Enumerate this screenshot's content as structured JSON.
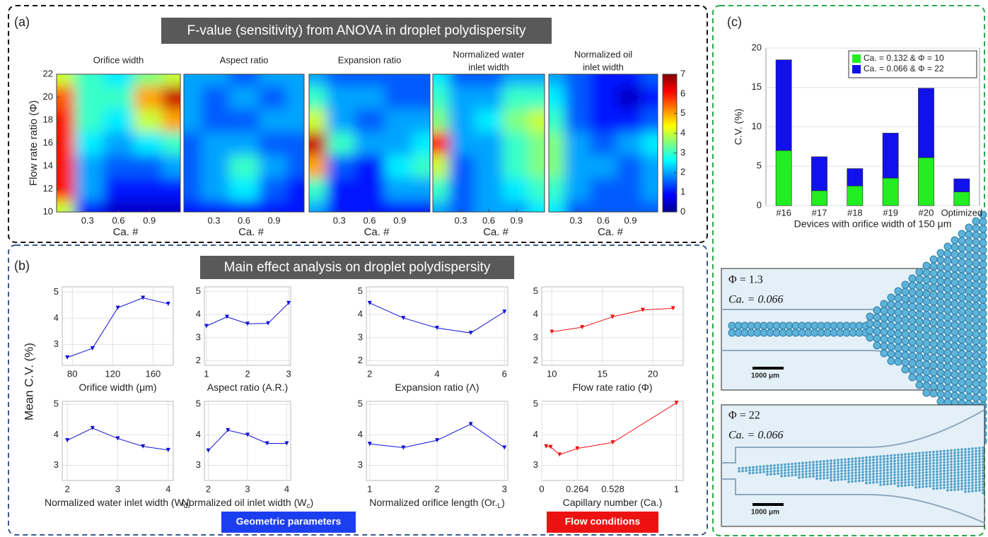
{
  "labels": {
    "panel_a": "(a)",
    "panel_b": "(b)",
    "panel_c": "(c)",
    "header_a": "F-value (sensitivity) from ANOVA in droplet polydispersity",
    "header_b": "Main effect analysis on droplet polydispersity",
    "shared_ylabel": "Mean C.V. (%)",
    "button_geometric": "Geometric parameters",
    "button_flow": "Flow conditions"
  },
  "images": [
    {
      "phi": "Φ = 1.3",
      "ca": "Ca. = 0.066",
      "scale": "1000 μm"
    },
    {
      "phi": "Φ = 22",
      "ca": "Ca. = 0.066",
      "scale": "1000 μm"
    }
  ],
  "chart_data": [
    {
      "type": "heatmap",
      "title": [
        "Orifice width"
      ],
      "xlabel": "Ca. #",
      "ylabel": "Flow rate ratio (Φ)",
      "colormap": "jet",
      "xlim": [
        0,
        1.2
      ],
      "xticks": [
        0.3,
        0.6,
        0.9
      ],
      "ylim": [
        10,
        22
      ],
      "yticks": [
        10,
        12,
        14,
        16,
        18,
        20,
        22
      ],
      "clim": [
        0,
        7
      ],
      "x": [
        0.05,
        0.3,
        0.6,
        0.9,
        1.15
      ],
      "y": [
        10,
        12,
        14,
        16,
        18,
        20,
        22
      ],
      "z": [
        [
          4,
          1,
          0.5,
          0.5,
          0.5
        ],
        [
          6,
          2,
          1,
          1,
          1
        ],
        [
          6,
          2,
          1.5,
          1.5,
          2
        ],
        [
          6,
          2.5,
          2,
          2.5,
          3
        ],
        [
          6,
          3,
          2.5,
          4,
          5
        ],
        [
          5.5,
          3,
          3,
          5,
          6.5
        ],
        [
          4,
          3,
          2.5,
          3.5,
          4
        ]
      ]
    },
    {
      "type": "heatmap",
      "title": [
        "Aspect ratio"
      ],
      "xlabel": "Ca. #",
      "colormap": "jet",
      "xlim": [
        0,
        1.2
      ],
      "xticks": [
        0.3,
        0.6,
        0.9
      ],
      "ylim": [
        10,
        22
      ],
      "clim": [
        0,
        7
      ],
      "x": [
        0.05,
        0.3,
        0.6,
        0.9,
        1.15
      ],
      "y": [
        10,
        12,
        14,
        16,
        18,
        20,
        22
      ],
      "z": [
        [
          1,
          1,
          1,
          1,
          1
        ],
        [
          1.5,
          2,
          2.5,
          1.5,
          1
        ],
        [
          1.5,
          2,
          3,
          2,
          1.5
        ],
        [
          1.5,
          2,
          2,
          1.5,
          1.5
        ],
        [
          2,
          1.5,
          1.5,
          2,
          2
        ],
        [
          2,
          1.5,
          2,
          1.5,
          2
        ],
        [
          2,
          2,
          1.5,
          2,
          2
        ]
      ]
    },
    {
      "type": "heatmap",
      "title": [
        "Expansion ratio"
      ],
      "xlabel": "Ca. #",
      "colormap": "jet",
      "xlim": [
        0,
        1.2
      ],
      "xticks": [
        0.3,
        0.6,
        0.9
      ],
      "ylim": [
        10,
        22
      ],
      "clim": [
        0,
        7
      ],
      "x": [
        0.05,
        0.3,
        0.6,
        0.9,
        1.15
      ],
      "y": [
        10,
        12,
        14,
        16,
        18,
        20,
        22
      ],
      "z": [
        [
          2,
          1,
          1,
          1,
          1
        ],
        [
          3,
          1,
          1,
          2,
          2
        ],
        [
          5,
          1.5,
          1,
          2.5,
          3
        ],
        [
          6.5,
          3,
          2,
          2,
          2.5
        ],
        [
          4,
          2,
          1.5,
          2,
          2
        ],
        [
          3,
          2,
          2,
          1.5,
          1.5
        ],
        [
          2,
          1.5,
          1.5,
          1.5,
          1.5
        ]
      ]
    },
    {
      "type": "heatmap",
      "title": [
        "Normalized water",
        "inlet width"
      ],
      "xlabel": "Ca. #",
      "colormap": "jet",
      "xlim": [
        0,
        1.2
      ],
      "xticks": [
        0.3,
        0.6,
        0.9
      ],
      "ylim": [
        10,
        22
      ],
      "clim": [
        0,
        7
      ],
      "x": [
        0.05,
        0.3,
        0.6,
        0.9,
        1.15
      ],
      "y": [
        10,
        12,
        14,
        16,
        18,
        20,
        22
      ],
      "z": [
        [
          2,
          1.5,
          2,
          2,
          2.5
        ],
        [
          3,
          1.5,
          2,
          2.5,
          3
        ],
        [
          4,
          1.5,
          2,
          3,
          3.5
        ],
        [
          6,
          2,
          2,
          3,
          3.5
        ],
        [
          3.5,
          2,
          2.5,
          3.5,
          4
        ],
        [
          3,
          2,
          2,
          3,
          3
        ],
        [
          2.5,
          1.5,
          1.5,
          2,
          2
        ]
      ]
    },
    {
      "type": "heatmap",
      "title": [
        "Normalized oil",
        "inlet width"
      ],
      "xlabel": "Ca. #",
      "colormap": "jet",
      "xlim": [
        0,
        1.2
      ],
      "xticks": [
        0.3,
        0.6,
        0.9
      ],
      "ylim": [
        10,
        22
      ],
      "clim": [
        0,
        7
      ],
      "cticks": [
        0,
        1,
        2,
        3,
        4,
        5,
        6,
        7
      ],
      "x": [
        0.05,
        0.3,
        0.6,
        0.9,
        1.15
      ],
      "y": [
        10,
        12,
        14,
        16,
        18,
        20,
        22
      ],
      "z": [
        [
          2.5,
          1.5,
          1.5,
          1.5,
          1.5
        ],
        [
          3,
          2,
          1.5,
          1.5,
          2
        ],
        [
          3.5,
          2,
          2,
          1.5,
          2
        ],
        [
          3.5,
          2,
          1.5,
          2,
          2.5
        ],
        [
          3,
          1.5,
          1,
          1,
          1.5
        ],
        [
          2.5,
          1.5,
          1,
          0.5,
          1
        ],
        [
          2,
          1.5,
          1,
          1,
          1.5
        ]
      ]
    },
    {
      "type": "line",
      "xlabel": [
        "Orifice width (μm)"
      ],
      "color": "#1010d8",
      "grid": true,
      "x": [
        75,
        100,
        125,
        150,
        175
      ],
      "values": [
        2.5,
        2.85,
        4.4,
        4.78,
        4.55
      ],
      "xlim": [
        70,
        180
      ],
      "xticks": [
        80,
        120,
        160
      ],
      "ylim": [
        2.2,
        5.2
      ],
      "yticks": [
        3,
        4,
        5
      ]
    },
    {
      "type": "line",
      "xlabel": [
        "Aspect ratio (A.R.)"
      ],
      "color": "#1010d8",
      "grid": true,
      "x": [
        1,
        1.5,
        2,
        2.5,
        3
      ],
      "values": [
        3.5,
        3.9,
        3.6,
        3.62,
        4.5
      ],
      "xlim": [
        0.95,
        3.05
      ],
      "xticks": [
        1,
        2,
        3
      ],
      "ylim": [
        1.8,
        5.2
      ],
      "yticks": [
        2,
        3,
        4,
        5
      ]
    },
    {
      "type": "line",
      "xlabel": [
        "Expansion ratio (Λ)"
      ],
      "color": "#1010d8",
      "grid": true,
      "x": [
        2,
        3,
        4,
        5,
        6
      ],
      "values": [
        4.5,
        3.85,
        3.42,
        3.2,
        4.12
      ],
      "xlim": [
        1.9,
        6.1
      ],
      "xticks": [
        2,
        4,
        6
      ],
      "ylim": [
        1.8,
        5.2
      ],
      "yticks": [
        2,
        3,
        4,
        5
      ]
    },
    {
      "type": "line",
      "xlabel": [
        "Flow rate ratio (Φ)"
      ],
      "color": "#ee1111",
      "grid": true,
      "x": [
        10,
        13,
        16,
        19,
        22
      ],
      "values": [
        3.25,
        3.45,
        3.9,
        4.2,
        4.27
      ],
      "xlim": [
        9,
        23
      ],
      "xticks": [
        10,
        15,
        20
      ],
      "ylim": [
        1.8,
        5.2
      ],
      "yticks": [
        2,
        3,
        4,
        5
      ]
    },
    {
      "type": "line",
      "xlabel": [
        "Normalized water inlet width (W",
        "d",
        ")"
      ],
      "color": "#1010d8",
      "grid": true,
      "x": [
        2,
        2.5,
        3,
        3.5,
        4
      ],
      "values": [
        3.82,
        4.22,
        3.88,
        3.62,
        3.5
      ],
      "xlim": [
        1.9,
        4.1
      ],
      "xticks": [
        2,
        3,
        4
      ],
      "ylim": [
        2.5,
        5.1
      ],
      "yticks": [
        3,
        4,
        5
      ]
    },
    {
      "type": "line",
      "xlabel": [
        "Normalized oil inlet width (W",
        "c",
        ")"
      ],
      "color": "#1010d8",
      "grid": true,
      "x": [
        2,
        2.5,
        3,
        3.5,
        4
      ],
      "values": [
        3.48,
        4.15,
        4.0,
        3.72,
        3.72
      ],
      "xlim": [
        1.9,
        4.1
      ],
      "xticks": [
        2,
        3,
        4
      ],
      "ylim": [
        2.5,
        5.1
      ],
      "yticks": [
        3,
        4,
        5
      ]
    },
    {
      "type": "line",
      "xlabel": [
        "Normalized orifice length (Or.",
        "L",
        ")"
      ],
      "color": "#1010d8",
      "grid": true,
      "x": [
        1,
        1.5,
        2,
        2.5,
        3
      ],
      "values": [
        3.7,
        3.58,
        3.82,
        4.35,
        3.58
      ],
      "xlim": [
        0.95,
        3.05
      ],
      "xticks": [
        1,
        2,
        3
      ],
      "ylim": [
        2.5,
        5.1
      ],
      "yticks": [
        3,
        4,
        5
      ]
    },
    {
      "type": "line",
      "xlabel": [
        "Capillary number (Ca.)"
      ],
      "color": "#ee1111",
      "grid": true,
      "x": [
        0.033,
        0.066,
        0.132,
        0.264,
        0.528,
        1
      ],
      "values": [
        3.62,
        3.6,
        3.35,
        3.55,
        3.75,
        5.05
      ],
      "xlim": [
        0,
        1.05
      ],
      "xticks": [
        0,
        0.264,
        0.528,
        1
      ],
      "ylim": [
        2.5,
        5.1
      ],
      "yticks": [
        3,
        4,
        5
      ]
    },
    {
      "type": "stacked_bar",
      "ylabel": "C.V. (%)",
      "xlabel": "Devices with orifice width of 150 μm",
      "grid": true,
      "legend": "top-right",
      "categories": [
        "#16",
        "#17",
        "#18",
        "#19",
        "#20",
        "Optimized"
      ],
      "ylim": [
        0,
        20
      ],
      "yticks": [
        0,
        5,
        10,
        15,
        20
      ],
      "series": [
        {
          "name": "Ca. = 0.132 &  Φ = 10",
          "color": "#22ee22",
          "values": [
            7,
            1.9,
            2.5,
            3.5,
            6.1,
            1.75
          ]
        },
        {
          "name": "Ca. = 0.066 &  Φ = 22",
          "color": "#1111ee",
          "values": [
            11.5,
            4.3,
            2.2,
            5.7,
            8.8,
            1.65
          ]
        }
      ]
    }
  ]
}
